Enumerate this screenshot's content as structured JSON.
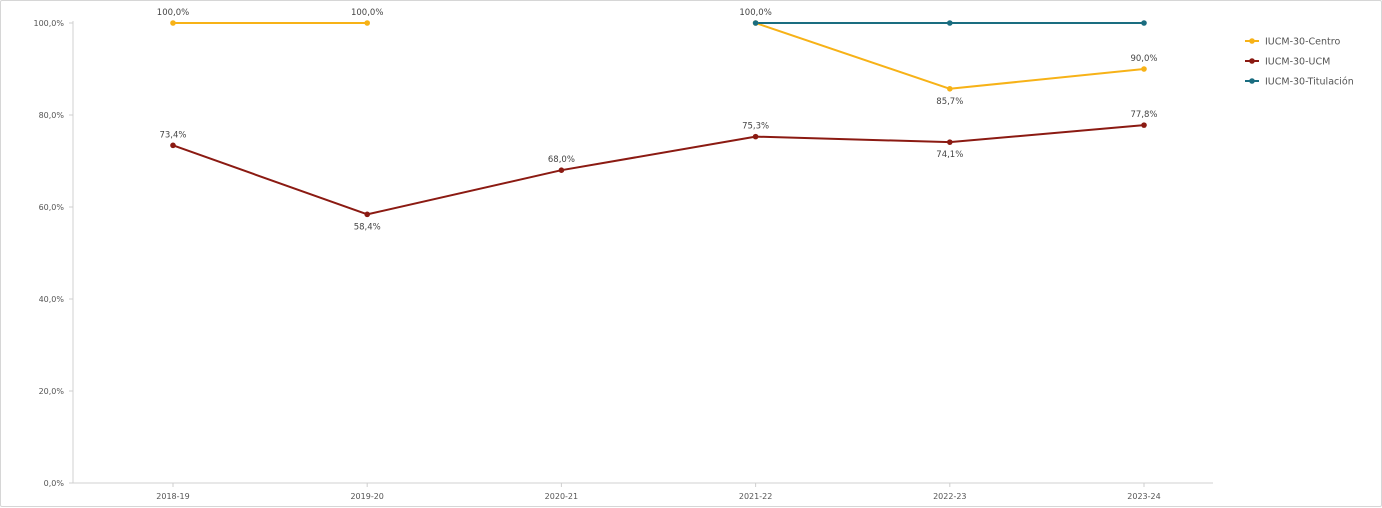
{
  "chart_data": {
    "type": "line",
    "categories": [
      "2018-19",
      "2019-20",
      "2020-21",
      "2021-22",
      "2022-23",
      "2023-24"
    ],
    "ylim": [
      0,
      100
    ],
    "yticks": [
      0,
      20,
      40,
      60,
      80,
      100
    ],
    "ytick_labels": [
      "0,0%",
      "20,0%",
      "40,0%",
      "60,0%",
      "80,0%",
      "100,0%"
    ],
    "grid": false,
    "legend_position": "right",
    "series": [
      {
        "name": "IUCM-30-Centro",
        "color": "#f7b217",
        "segments": [
          [
            0,
            1
          ],
          [
            3,
            4,
            5
          ]
        ],
        "values": [
          100.0,
          100.0,
          null,
          100.0,
          85.7,
          90.0
        ],
        "labels": [
          "100,0%",
          "100,0%",
          "",
          "100,0%",
          "85,7%",
          "90,0%"
        ],
        "label_pos": [
          "above",
          "above",
          "",
          "above",
          "below",
          "above"
        ]
      },
      {
        "name": "IUCM-30-UCM",
        "color": "#8b1a12",
        "segments": [
          [
            0,
            1,
            2,
            3,
            4,
            5
          ]
        ],
        "values": [
          73.4,
          58.4,
          68.0,
          75.3,
          74.1,
          77.8
        ],
        "labels": [
          "73,4%",
          "58,4%",
          "68,0%",
          "75,3%",
          "74,1%",
          "77,8%"
        ],
        "label_pos": [
          "above",
          "below",
          "above",
          "above",
          "below",
          "above"
        ]
      },
      {
        "name": "IUCM-30-Titulación",
        "color": "#1a6d80",
        "segments": [
          [
            3,
            4,
            5
          ]
        ],
        "values": [
          null,
          null,
          null,
          100.0,
          100.0,
          100.0
        ],
        "labels": [
          "",
          "",
          "",
          "",
          "",
          ""
        ],
        "label_pos": [
          "",
          "",
          "",
          "",
          "",
          ""
        ]
      }
    ]
  }
}
